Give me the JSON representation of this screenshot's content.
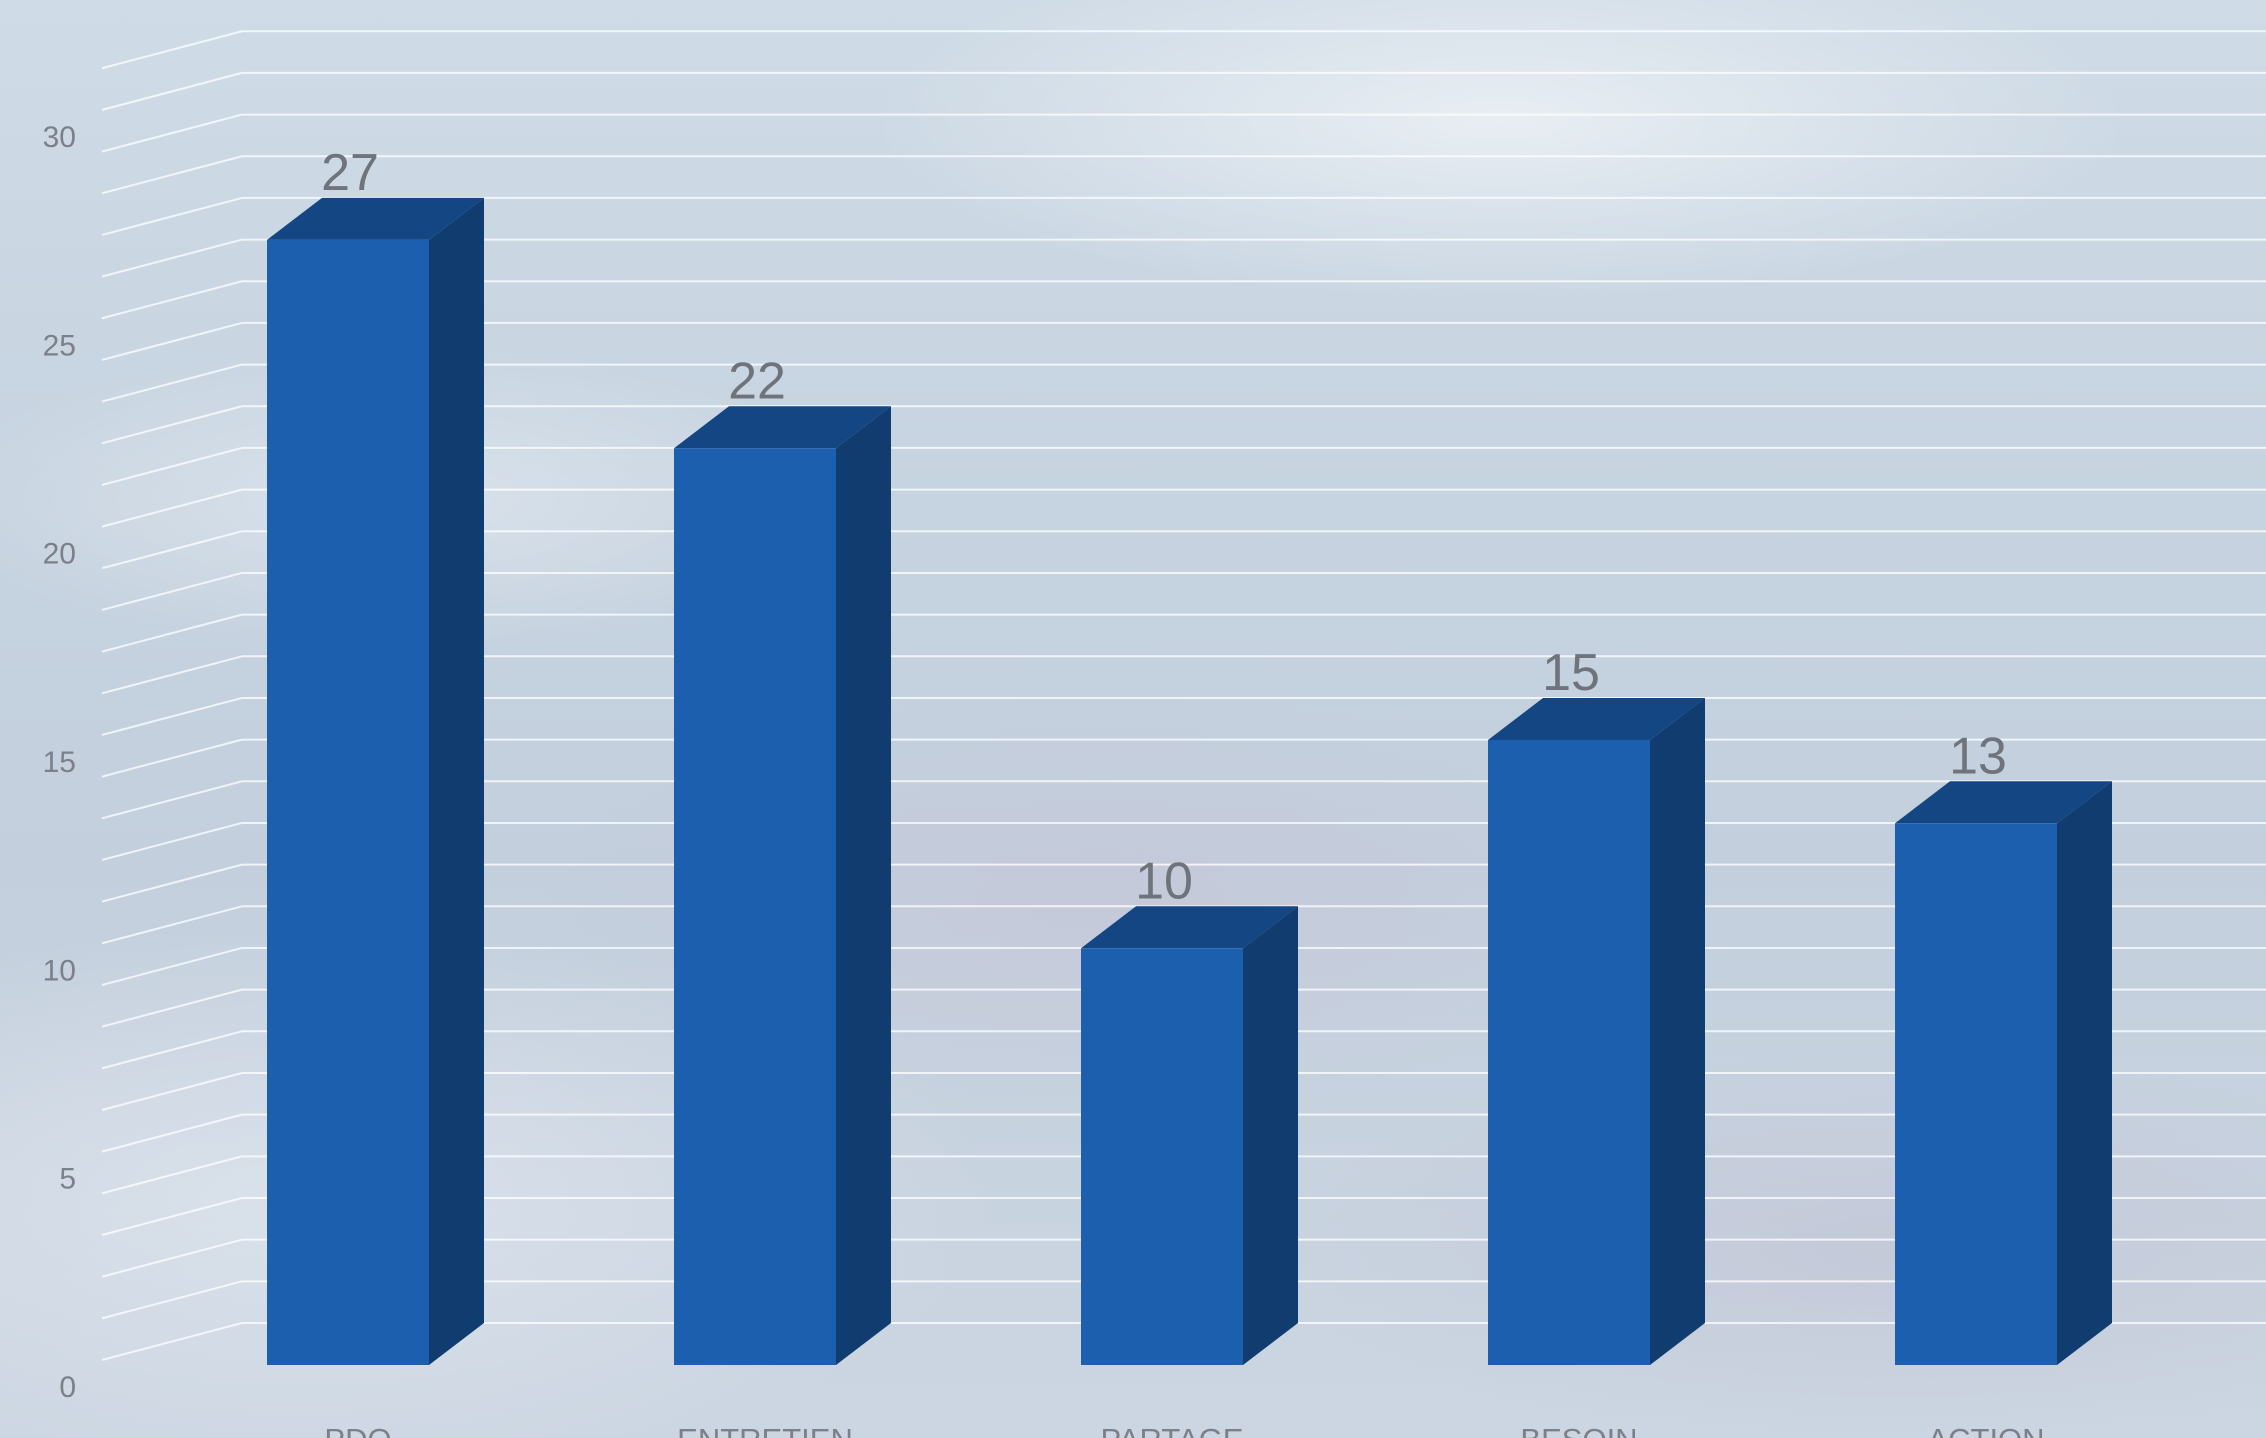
{
  "chart_data": {
    "type": "bar",
    "categories": [
      "PDO",
      "ENTRETIEN",
      "PARTAGE",
      "BESOIN",
      "ACTION"
    ],
    "values": [
      27,
      22,
      10,
      15,
      13
    ],
    "data_labels": [
      "27",
      "22",
      "10",
      "15",
      "13"
    ],
    "y_ticks": [
      "0",
      "5",
      "10",
      "15",
      "20",
      "25",
      "30"
    ],
    "ylim": [
      0,
      30
    ],
    "title": "",
    "xlabel": "",
    "ylabel": "",
    "grid": true,
    "three_d": true,
    "bar_colors": {
      "front": "#1c5fae",
      "top": "#134683",
      "side": "#113c70"
    },
    "grid_color": "#ffffff"
  }
}
